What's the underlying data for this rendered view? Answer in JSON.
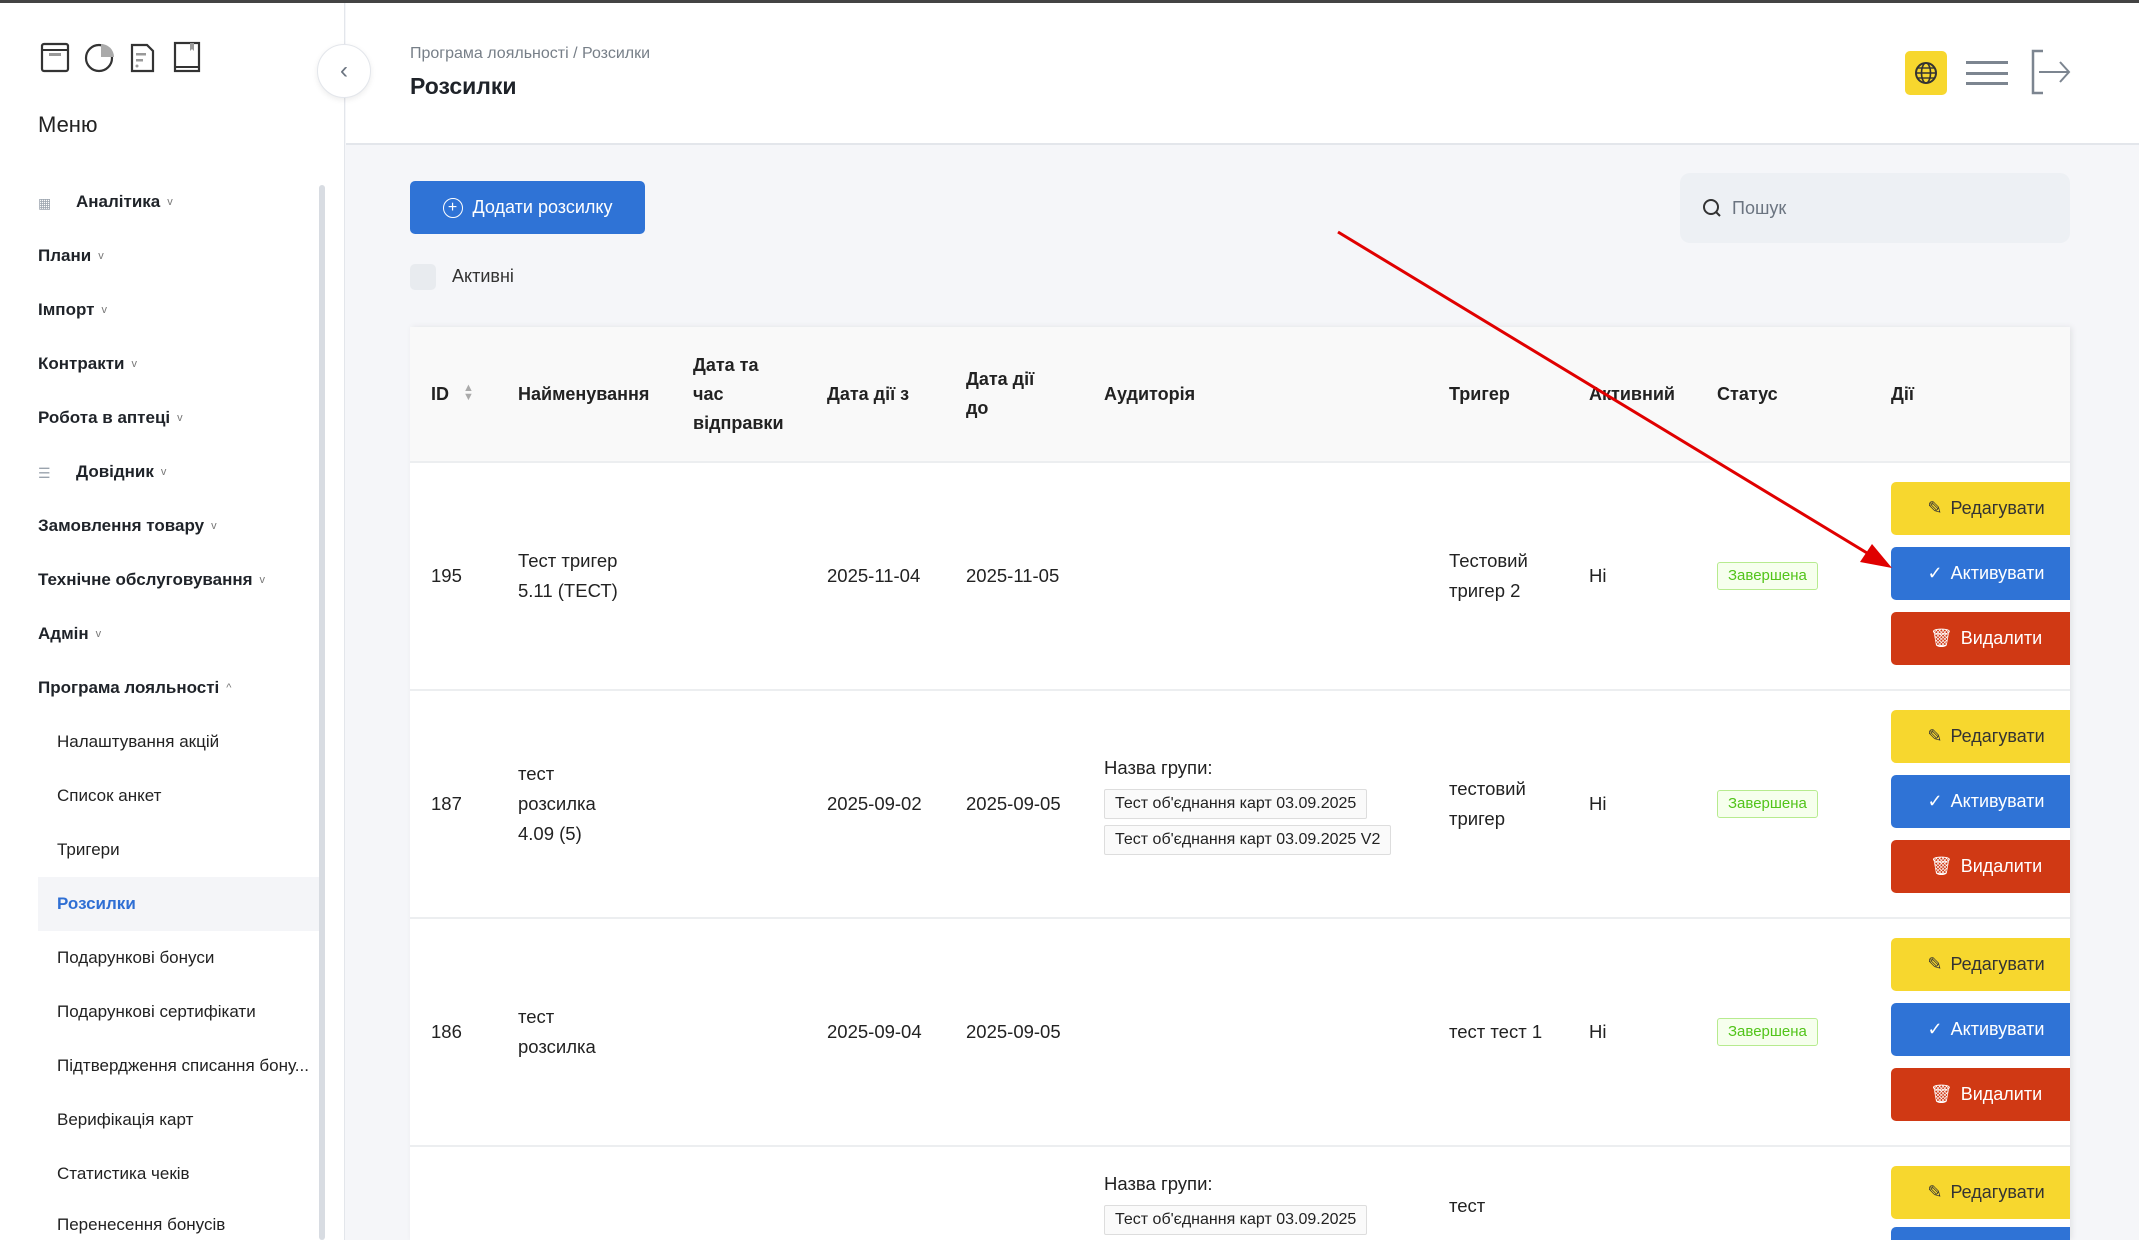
{
  "sidebar": {
    "menu_title": "Меню",
    "top_icons": [
      "archive-icon",
      "pie-chart-icon",
      "document-icon",
      "book-icon"
    ],
    "items": [
      {
        "label": "Аналітика",
        "icon": "grid-icon",
        "expanded": false
      },
      {
        "label": "Плани",
        "expanded": false
      },
      {
        "label": "Імпорт",
        "expanded": false
      },
      {
        "label": "Контракти",
        "expanded": false
      },
      {
        "label": "Робота в аптеці",
        "expanded": false
      },
      {
        "label": "Довідник",
        "icon": "list-icon",
        "expanded": false
      },
      {
        "label": "Замовлення товару",
        "expanded": false
      },
      {
        "label": "Технічне обслуговування",
        "expanded": false
      },
      {
        "label": "Адмін",
        "expanded": false
      },
      {
        "label": "Програма лояльності",
        "expanded": true
      }
    ],
    "subitems": [
      {
        "label": "Налаштування акцій"
      },
      {
        "label": "Список анкет"
      },
      {
        "label": "Тригери"
      },
      {
        "label": "Розсилки",
        "active": true
      },
      {
        "label": "Подарункові бонуси"
      },
      {
        "label": "Подарункові сертифікати"
      },
      {
        "label": "Підтвердження списання бону..."
      },
      {
        "label": "Верифікація карт"
      },
      {
        "label": "Статистика чеків"
      },
      {
        "label": "Перенесення бонусів"
      }
    ]
  },
  "header": {
    "breadcrumb": "Програма лояльності / Розсилки",
    "title": "Розсилки",
    "icons": [
      "globe-icon",
      "hamburger-icon",
      "logout-icon"
    ]
  },
  "toolbar": {
    "add_label": "Додати розсилку",
    "search_placeholder": "Пошук",
    "active_filter_label": "Активні",
    "active_filter_checked": false
  },
  "colors": {
    "accent": "#2f73d6",
    "edit": "#f7d72e",
    "delete": "#d03914",
    "status_done": "#52c41a",
    "annotation_arrow": "#e00000"
  },
  "table": {
    "columns": [
      "ID",
      "Найменування",
      "Дата та час відправки",
      "Дата дії з",
      "Дата дії до",
      "Аудиторія",
      "Тригер",
      "Активний",
      "Статус",
      "Дії"
    ],
    "action_labels": {
      "edit": "Редагувати",
      "activate": "Активувати",
      "delete": "Видалити"
    },
    "rows": [
      {
        "id": "195",
        "name": "Тест тригер 5.11 (ТЕСТ)",
        "sent": "",
        "from": "2025-11-04",
        "to": "2025-11-05",
        "audience_label": "",
        "groups": [],
        "trigger": "Тестовий тригер 2",
        "active": "Ні",
        "status": "Завершена"
      },
      {
        "id": "187",
        "name": "тест розсилка 4.09 (5)",
        "sent": "",
        "from": "2025-09-02",
        "to": "2025-09-05",
        "audience_label": "Назва групи:",
        "groups": [
          "Тест об'єднання карт 03.09.2025",
          "Тест об'єднання карт 03.09.2025 V2"
        ],
        "trigger": "тестовий тригер",
        "active": "Ні",
        "status": "Завершена"
      },
      {
        "id": "186",
        "name": "тест розсилка",
        "sent": "",
        "from": "2025-09-04",
        "to": "2025-09-05",
        "audience_label": "",
        "groups": [],
        "trigger": "тест тест 1",
        "active": "Ні",
        "status": "Завершена"
      },
      {
        "id": "",
        "name": "",
        "sent": "",
        "from": "",
        "to": "",
        "audience_label": "Назва групи:",
        "groups": [
          "Тест об'єднання карт 03.09.2025"
        ],
        "trigger": "тест",
        "active": "",
        "status": ""
      }
    ]
  }
}
